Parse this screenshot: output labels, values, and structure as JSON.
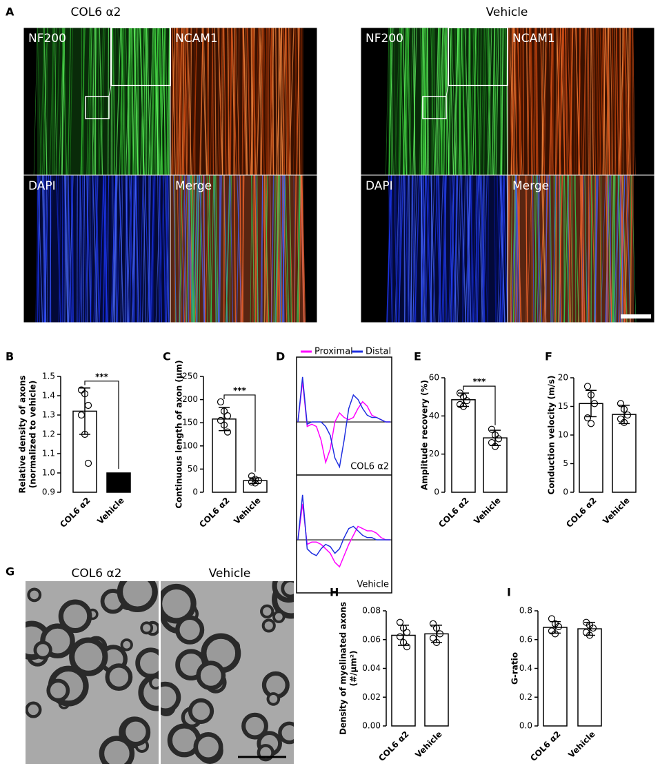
{
  "images": {
    "panel_A": {
      "label": "A",
      "groups": [
        {
          "title": "COL6 α2",
          "tiles": [
            "NF200",
            "NCAM1",
            "DAPI",
            "Merge"
          ]
        },
        {
          "title": "Vehicle",
          "tiles": [
            "NF200",
            "NCAM1",
            "DAPI",
            "Merge"
          ]
        }
      ]
    },
    "panel_G": {
      "label": "G",
      "titles": [
        "COL6 α2",
        "Vehicle"
      ]
    }
  },
  "chart_data": [
    {
      "type": "bar",
      "label": "B",
      "ylabel": [
        "Relative density of axons",
        "(normalized to vehicle)"
      ],
      "categories": [
        "COL6 α2",
        "Vehicle"
      ],
      "values": [
        1.32,
        1.0
      ],
      "errors": [
        0.12,
        0
      ],
      "points": [
        [
          1.43,
          1.41,
          1.35,
          1.3,
          1.2,
          1.05
        ],
        []
      ],
      "colors": [
        "#ffffff",
        "#000000"
      ],
      "ylim": [
        0.9,
        1.5
      ],
      "yticks": [
        0.9,
        {
          "value": 1.0,
          "label": "1.0"
        },
        1.1,
        1.2,
        1.3,
        1.4,
        1.5
      ],
      "significance": "***"
    },
    {
      "type": "bar",
      "label": "C",
      "ylabel": [
        "Continuous length of axon (μm)"
      ],
      "categories": [
        "COL6 α2",
        "Vehicle"
      ],
      "values": [
        158,
        25
      ],
      "errors": [
        25,
        6
      ],
      "points": [
        [
          195,
          175,
          165,
          155,
          145,
          130
        ],
        [
          35,
          28,
          25,
          22,
          20
        ]
      ],
      "colors": [
        "#ffffff",
        "#ffffff"
      ],
      "ylim": [
        0,
        250
      ],
      "yticks": [
        0,
        50,
        100,
        150,
        200,
        250
      ],
      "significance": "***"
    },
    {
      "type": "line",
      "label": "D",
      "x": [
        0,
        0.05,
        0.1,
        0.15,
        0.2,
        0.25,
        0.3,
        0.35,
        0.4,
        0.45,
        0.5,
        0.55,
        0.6,
        0.65,
        0.7,
        0.75,
        0.8,
        0.85,
        0.9,
        0.95,
        1
      ],
      "ylim": [
        -1.1,
        1.1
      ],
      "panels": [
        {
          "title": "COL6 α2",
          "series": [
            {
              "name": "Proximal",
              "color": "#ff00ff",
              "values": [
                0,
                0.9,
                -0.1,
                -0.05,
                -0.1,
                -0.4,
                -0.9,
                -0.6,
                0,
                0.2,
                0.1,
                0.05,
                0.1,
                0.3,
                0.45,
                0.35,
                0.15,
                0.1,
                0.05,
                0,
                0
              ]
            },
            {
              "name": "Distal",
              "color": "#1f2fe0",
              "values": [
                0,
                1.0,
                -0.05,
                0,
                0,
                0,
                -0.1,
                -0.3,
                -0.8,
                -1.0,
                -0.4,
                0.3,
                0.6,
                0.5,
                0.3,
                0.15,
                0.1,
                0.1,
                0.05,
                0,
                0
              ]
            }
          ]
        },
        {
          "title": "Vehicle",
          "series": [
            {
              "name": "Proximal",
              "color": "#ff00ff",
              "values": [
                0,
                0.8,
                -0.1,
                -0.05,
                -0.05,
                -0.1,
                -0.2,
                -0.3,
                -0.5,
                -0.6,
                -0.35,
                -0.1,
                0.1,
                0.3,
                0.25,
                0.2,
                0.2,
                0.15,
                0.05,
                0,
                0
              ]
            },
            {
              "name": "Distal",
              "color": "#1f2fe0",
              "values": [
                0,
                1.0,
                -0.2,
                -0.3,
                -0.35,
                -0.2,
                -0.1,
                -0.15,
                -0.3,
                -0.2,
                0.05,
                0.25,
                0.3,
                0.2,
                0.1,
                0.05,
                0.05,
                0,
                0,
                0,
                0
              ]
            }
          ]
        }
      ]
    },
    {
      "type": "bar",
      "label": "E",
      "ylabel": [
        "Amplitude recovery (%)"
      ],
      "categories": [
        "COL6 α2",
        "Vehicle"
      ],
      "values": [
        48.5,
        28.5
      ],
      "errors": [
        3.5,
        4
      ],
      "points": [
        [
          52,
          50,
          48,
          46,
          45
        ],
        [
          33,
          30,
          28,
          26,
          24
        ]
      ],
      "colors": [
        "#ffffff",
        "#ffffff"
      ],
      "ylim": [
        0,
        60
      ],
      "yticks": [
        0,
        20,
        40,
        60
      ],
      "significance": "***"
    },
    {
      "type": "bar",
      "label": "F",
      "ylabel": [
        "Conduction velocity (m/s)"
      ],
      "categories": [
        "COL6 α2",
        "Vehicle"
      ],
      "values": [
        15.5,
        13.6
      ],
      "errors": [
        2.3,
        1.6
      ],
      "points": [
        [
          18.5,
          17,
          15.5,
          13,
          12
        ],
        [
          15.5,
          14.5,
          13.5,
          12.8,
          12.2
        ]
      ],
      "colors": [
        "#ffffff",
        "#ffffff"
      ],
      "ylim": [
        0,
        20
      ],
      "yticks": [
        0,
        5,
        10,
        15,
        20
      ]
    },
    {
      "type": "bar",
      "label": "H",
      "ylabel": [
        "Density of myelinated axons",
        "(#/μm²)"
      ],
      "categories": [
        "COL6 α2",
        "Vehicle"
      ],
      "values": [
        0.063,
        0.064
      ],
      "errors": [
        0.007,
        0.006
      ],
      "points": [
        [
          0.072,
          0.068,
          0.065,
          0.062,
          0.058,
          0.055
        ],
        [
          0.071,
          0.068,
          0.064,
          0.061,
          0.058
        ]
      ],
      "colors": [
        "#ffffff",
        "#ffffff"
      ],
      "ylim": [
        0,
        0.08
      ],
      "yticks": [
        {
          "value": 0,
          "label": "0.00"
        },
        0.02,
        0.04,
        0.06,
        0.08
      ]
    },
    {
      "type": "bar",
      "label": "I",
      "ylabel": [
        "G-ratio"
      ],
      "categories": [
        "COL6 α2",
        "Vehicle"
      ],
      "values": [
        0.685,
        0.675
      ],
      "errors": [
        0.04,
        0.045
      ],
      "points": [
        [
          0.745,
          0.71,
          0.69,
          0.66,
          0.64
        ],
        [
          0.72,
          0.7,
          0.68,
          0.65,
          0.63
        ]
      ],
      "colors": [
        "#ffffff",
        "#ffffff"
      ],
      "ylim": [
        0,
        0.8
      ],
      "yticks": [
        {
          "value": 0,
          "label": "0.0"
        },
        0.2,
        0.4,
        0.6,
        0.8
      ]
    }
  ]
}
